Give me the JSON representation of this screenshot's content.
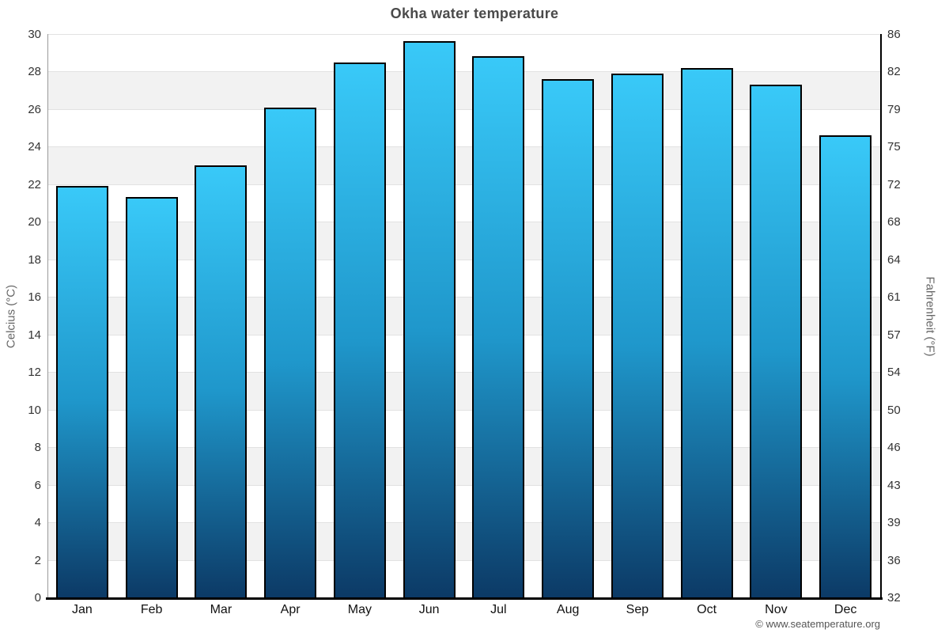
{
  "title": "Okha water temperature",
  "footer": "© www.seatemperature.org",
  "y_axis_left": {
    "title": "Celcius (°C)",
    "ticks": [
      0,
      2,
      4,
      6,
      8,
      10,
      12,
      14,
      16,
      18,
      20,
      22,
      24,
      26,
      28,
      30
    ]
  },
  "y_axis_right": {
    "title": "Fahrenheit (°F)",
    "ticks": [
      32,
      36,
      39,
      43,
      46,
      50,
      54,
      57,
      61,
      64,
      68,
      72,
      75,
      79,
      82,
      86
    ]
  },
  "colors": {
    "bar_top": "#39c9f8",
    "bar_bottom": "#0c3a66",
    "bar_border": "#000000",
    "band_gray": "#f2f2f2",
    "gridline": "#e2e2e2",
    "title_text": "#4a4a4a",
    "axis_text": "#333333"
  },
  "chart_data": {
    "type": "bar",
    "title": "Okha water temperature",
    "categories": [
      "Jan",
      "Feb",
      "Mar",
      "Apr",
      "May",
      "Jun",
      "Jul",
      "Aug",
      "Sep",
      "Oct",
      "Nov",
      "Dec"
    ],
    "values": [
      21.9,
      21.3,
      23.0,
      26.1,
      28.5,
      29.6,
      28.8,
      27.6,
      27.9,
      28.2,
      27.3,
      24.6
    ],
    "xlabel": "",
    "ylabel": "Celcius (°C)",
    "ylabel_right": "Fahrenheit (°F)",
    "ylim": [
      0,
      30
    ],
    "tick_step_celsius": 2,
    "grid": true,
    "banded_background": true,
    "legend": "none"
  }
}
